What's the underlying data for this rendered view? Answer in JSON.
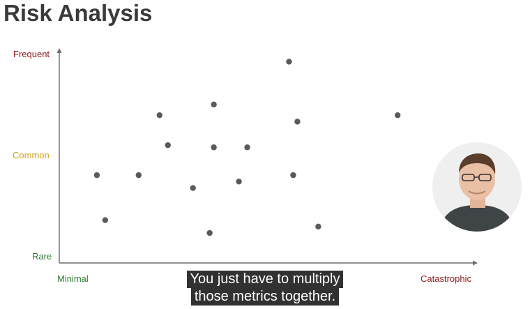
{
  "title": "Risk Analysis",
  "y_axis": {
    "top_label": "Frequent",
    "mid_label": "Common",
    "bottom_label": "Rare"
  },
  "x_axis": {
    "left_label": "Minimal",
    "right_label": "Catastrophic"
  },
  "colors": {
    "frequent": "#8b1a1a",
    "common": "#d4a017",
    "rare": "#2e7d32",
    "minimal": "#2e7d32",
    "catastrophic": "#8b1a1a",
    "points": "#5a5a5a",
    "axis": "#6b6b6b"
  },
  "caption": {
    "line1": "You just have to multiply",
    "line2": "those metrics together."
  },
  "presenter": {
    "icon": "presenter-video-icon"
  },
  "chart_data": {
    "type": "scatter",
    "title": "Risk Analysis",
    "xlim": [
      0,
      100
    ],
    "ylim": [
      0,
      100
    ],
    "grid": false,
    "points": [
      {
        "x": 9,
        "y": 41
      },
      {
        "x": 11,
        "y": 20
      },
      {
        "x": 19,
        "y": 41
      },
      {
        "x": 24,
        "y": 69
      },
      {
        "x": 26,
        "y": 55
      },
      {
        "x": 32,
        "y": 35
      },
      {
        "x": 36,
        "y": 14
      },
      {
        "x": 37,
        "y": 74
      },
      {
        "x": 37,
        "y": 54
      },
      {
        "x": 43,
        "y": 38
      },
      {
        "x": 45,
        "y": 54
      },
      {
        "x": 55,
        "y": 94
      },
      {
        "x": 56,
        "y": 41
      },
      {
        "x": 57,
        "y": 66
      },
      {
        "x": 62,
        "y": 17
      },
      {
        "x": 81,
        "y": 69
      }
    ]
  }
}
